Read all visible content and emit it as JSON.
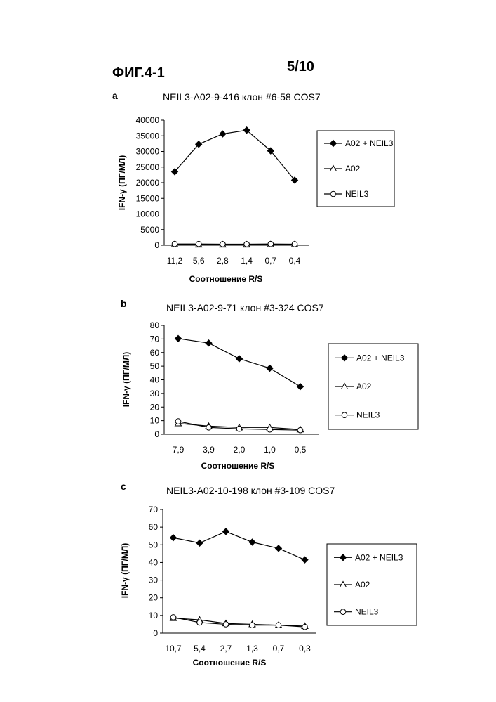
{
  "header": {
    "figure_label": "ФИГ.4-1",
    "sheet_number": "5/10"
  },
  "chart_data": [
    {
      "type": "line",
      "panel_letter": "a",
      "title": "NEIL3-A02-9-416 клон #6-58 COS7",
      "xlabel": "Соотношение R/S",
      "ylabel": "IFN-γ (ПГ/МЛ)",
      "categories": [
        "11,2",
        "5,6",
        "2,8",
        "1,4",
        "0,7",
        "0,4"
      ],
      "yticks": [
        0,
        5000,
        10000,
        15000,
        20000,
        25000,
        30000,
        35000,
        40000
      ],
      "ylim": [
        0,
        40000
      ],
      "legend_position": "right",
      "series": [
        {
          "name": "A02 + NEIL3",
          "marker": "diamond",
          "values": [
            23500,
            32300,
            35600,
            36800,
            30200,
            20800
          ]
        },
        {
          "name": "A02",
          "marker": "triangle",
          "values": [
            250,
            200,
            200,
            200,
            250,
            250
          ]
        },
        {
          "name": "NEIL3",
          "marker": "circle",
          "values": [
            400,
            400,
            350,
            350,
            400,
            350
          ]
        }
      ]
    },
    {
      "type": "line",
      "panel_letter": "b",
      "title": "NEIL3-A02-9-71 клон #3-324 COS7",
      "xlabel": "Соотношение R/S",
      "ylabel": "IFN-γ (ПГ/МЛ)",
      "categories": [
        "7,9",
        "3,9",
        "2,0",
        "1,0",
        "0,5"
      ],
      "yticks": [
        0,
        10,
        20,
        30,
        40,
        50,
        60,
        70,
        80
      ],
      "ylim": [
        0,
        80
      ],
      "legend_position": "right",
      "series": [
        {
          "name": "A02 + NEIL3",
          "marker": "diamond",
          "values": [
            70.3,
            67,
            55.5,
            48.5,
            35
          ]
        },
        {
          "name": "A02",
          "marker": "triangle",
          "values": [
            8,
            6,
            5,
            5,
            3.5
          ]
        },
        {
          "name": "NEIL3",
          "marker": "circle",
          "values": [
            9.5,
            5,
            4,
            3.5,
            3
          ]
        }
      ]
    },
    {
      "type": "line",
      "panel_letter": "c",
      "title": "NEIL3-A02-10-198 клон #3-109 COS7",
      "xlabel": "Соотношение R/S",
      "ylabel": "IFN-γ (ПГ/МЛ)",
      "categories": [
        "10,7",
        "5,4",
        "2,7",
        "1,3",
        "0,7",
        "0,3"
      ],
      "yticks": [
        0,
        10,
        20,
        30,
        40,
        50,
        60,
        70
      ],
      "ylim": [
        0,
        70
      ],
      "legend_position": "right",
      "series": [
        {
          "name": "A02 + NEIL3",
          "marker": "diamond",
          "values": [
            54,
            51,
            57.5,
            51.5,
            48,
            41.5
          ]
        },
        {
          "name": "A02",
          "marker": "triangle",
          "values": [
            8.5,
            7.5,
            5.5,
            5,
            4.5,
            4
          ]
        },
        {
          "name": "NEIL3",
          "marker": "circle",
          "values": [
            9,
            6,
            5,
            4.5,
            4.5,
            3.5
          ]
        }
      ]
    }
  ]
}
